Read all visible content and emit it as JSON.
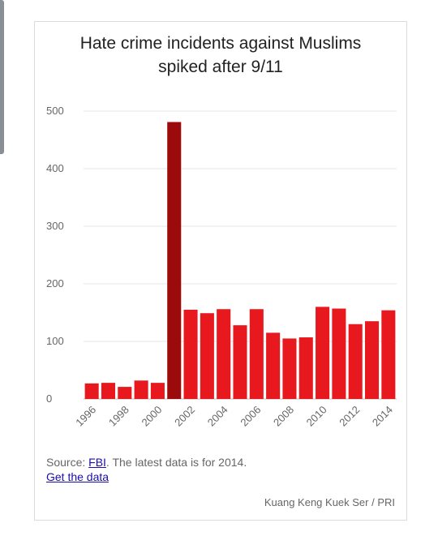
{
  "chart_data": {
    "type": "bar",
    "title": "Hate crime incidents against Muslims spiked after 9/11",
    "x": [
      "1996",
      "1997",
      "1998",
      "1999",
      "2000",
      "2001",
      "2002",
      "2003",
      "2004",
      "2005",
      "2006",
      "2007",
      "2008",
      "2009",
      "2010",
      "2011",
      "2012",
      "2013",
      "2014"
    ],
    "values": [
      27,
      28,
      21,
      32,
      28,
      481,
      155,
      149,
      156,
      128,
      156,
      115,
      105,
      107,
      160,
      157,
      130,
      135,
      154
    ],
    "x_tick_labels": [
      "1996",
      "1998",
      "2000",
      "2002",
      "2004",
      "2006",
      "2008",
      "2010",
      "2012",
      "2014"
    ],
    "y_ticks": [
      0,
      100,
      200,
      300,
      400,
      500
    ],
    "ylim": [
      0,
      500
    ],
    "xlabel": "",
    "ylabel": "",
    "grid": true,
    "colors": {
      "bar": "#e8191e",
      "highlight_bar": "#9b0b0b",
      "highlight_category": "2001"
    }
  },
  "footer": {
    "source_prefix": "Source: ",
    "source_link": "FBI",
    "source_suffix": ". The latest data is for 2014.",
    "get_data": "Get the data",
    "credit": "Kuang Keng Kuek Ser / PRI"
  }
}
